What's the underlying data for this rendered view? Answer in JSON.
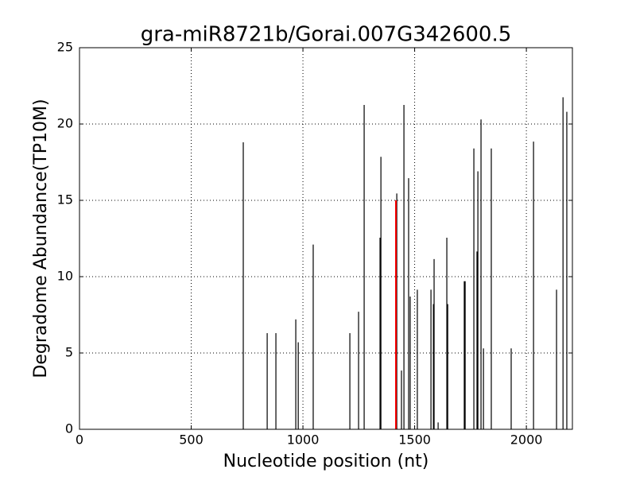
{
  "chart_data": {
    "type": "stem",
    "title": "gra-miR8721b/Gorai.007G342600.5",
    "x_label": "Nucleotide position (nt)",
    "y_label": "Degradome Abundance(TP10M)",
    "series": [
      {
        "color": "#000000",
        "x": [
          733,
          840,
          879,
          968,
          979,
          1046,
          1210,
          1249,
          1274,
          1345,
          1349,
          1420,
          1441,
          1452,
          1473,
          1480,
          1512,
          1573,
          1584,
          1587,
          1605,
          1644,
          1648,
          1722,
          1726,
          1765,
          1779,
          1783,
          1797,
          1808,
          1843,
          1932,
          2032,
          2135,
          2164,
          2181
        ],
        "values": [
          18.8,
          6.3,
          6.3,
          7.2,
          5.7,
          12.1,
          6.3,
          7.7,
          21.25,
          12.55,
          17.85,
          15.45,
          3.85,
          21.25,
          16.45,
          8.7,
          9.15,
          9.15,
          8.2,
          11.15,
          0.45,
          12.55,
          8.2,
          9.7,
          9.7,
          18.4,
          11.65,
          16.9,
          20.3,
          5.3,
          18.4,
          5.3,
          18.85,
          9.15,
          21.75,
          20.8
        ]
      },
      {
        "color": "#ff0000",
        "x": [
          1416
        ],
        "values": [
          15.0
        ]
      }
    ],
    "xlim": [
      0,
      2206
    ],
    "xticks": [
      0,
      500,
      1000,
      1500,
      2000
    ],
    "ylim": [
      0,
      25
    ],
    "yticks": [
      0,
      5,
      10,
      15,
      20,
      25
    ],
    "grid": true
  }
}
